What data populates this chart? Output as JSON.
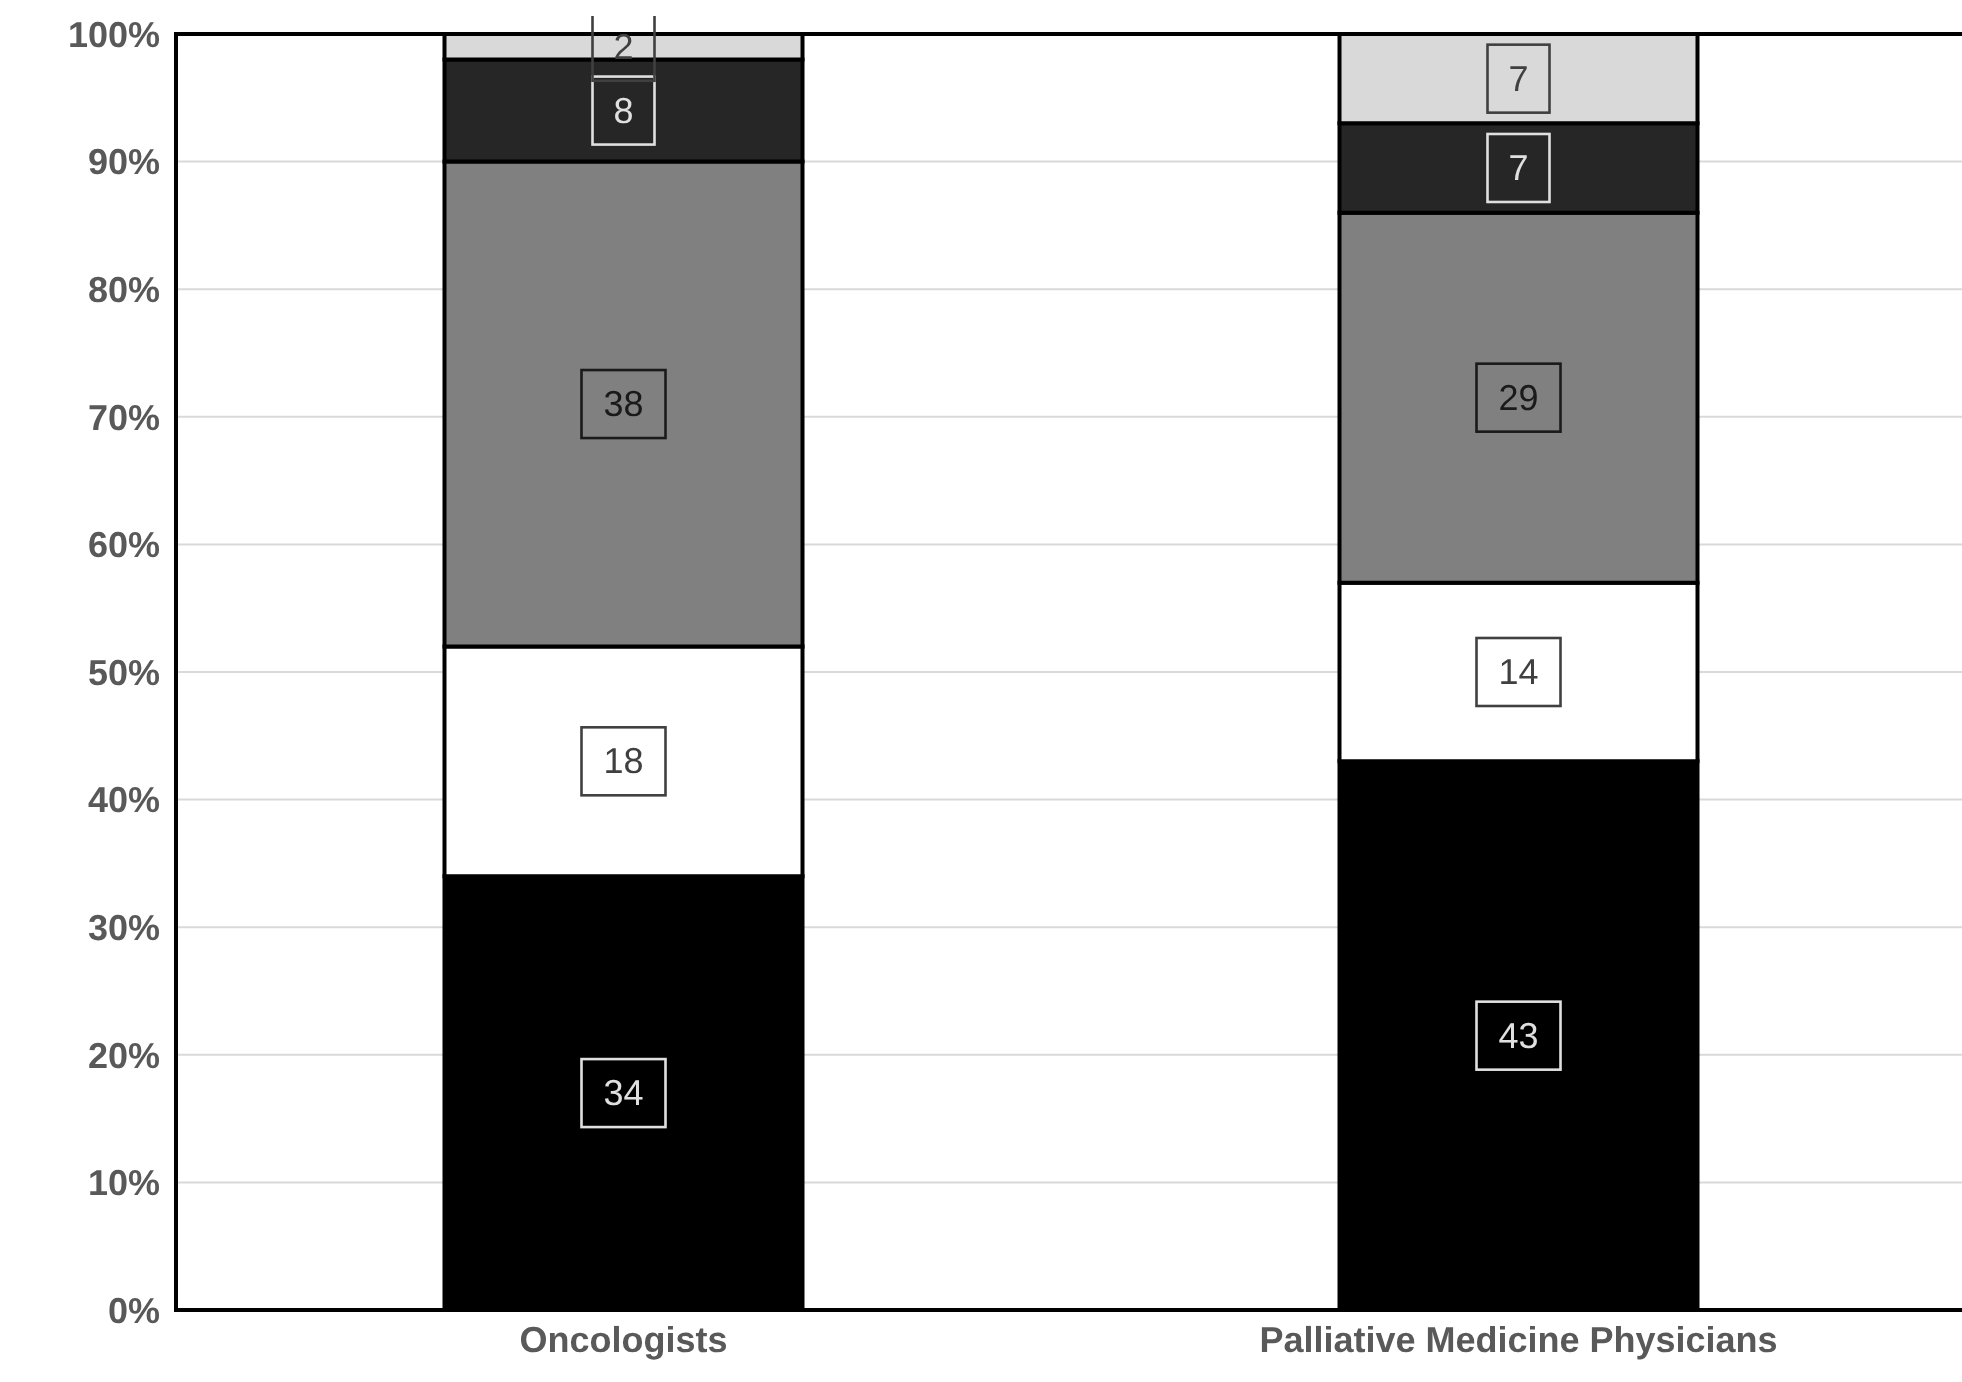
{
  "chart_data": {
    "type": "bar",
    "stacked": true,
    "categories": [
      "Oncologists",
      "Palliative Medicine Physicians"
    ],
    "series": [
      {
        "color": "#000000",
        "values": [
          34,
          43
        ]
      },
      {
        "color": "#ffffff",
        "values": [
          18,
          14
        ]
      },
      {
        "color": "#808080",
        "values": [
          38,
          29
        ]
      },
      {
        "color": "#262626",
        "values": [
          8,
          7
        ]
      },
      {
        "color": "#d9d9d9",
        "values": [
          2,
          7
        ]
      }
    ],
    "ylim": [
      0,
      100
    ],
    "yticks": [
      {
        "value": 0,
        "label": "0%"
      },
      {
        "value": 10,
        "label": "10%"
      },
      {
        "value": 20,
        "label": "20%"
      },
      {
        "value": 30,
        "label": "30%"
      },
      {
        "value": 40,
        "label": "40%"
      },
      {
        "value": 50,
        "label": "50%"
      },
      {
        "value": 60,
        "label": "60%"
      },
      {
        "value": 70,
        "label": "70%"
      },
      {
        "value": 80,
        "label": "80%"
      },
      {
        "value": 90,
        "label": "90%"
      },
      {
        "value": 100,
        "label": "100%"
      }
    ],
    "grid": "y",
    "data_labels": true
  }
}
